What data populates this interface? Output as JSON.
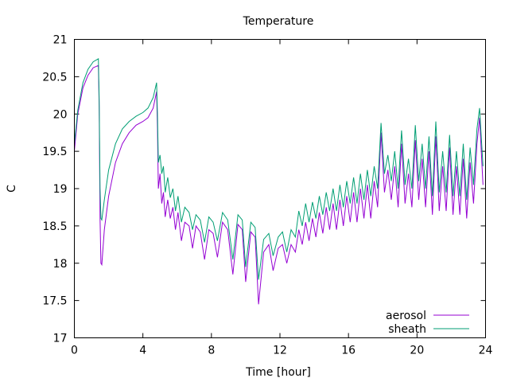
{
  "chart_data": {
    "type": "line",
    "title": "Temperature",
    "xlabel": "Time [hour]",
    "ylabel": "C",
    "xlim": [
      0,
      24
    ],
    "ylim": [
      17,
      21
    ],
    "xticks": [
      0,
      4,
      8,
      12,
      16,
      20,
      24
    ],
    "xtick_labels": [
      "0",
      "4",
      "8",
      "12",
      "16",
      "20",
      "24"
    ],
    "yticks": [
      17,
      17.5,
      18,
      18.5,
      19,
      19.5,
      20,
      20.5,
      21
    ],
    "ytick_labels": [
      "17",
      "17.5",
      "18",
      "18.5",
      "19",
      "19.5",
      "20",
      "20.5",
      "21"
    ],
    "grid": false,
    "legend_position": "bottom-right",
    "series": [
      {
        "name": "aerosol",
        "color": "#9400d3",
        "points": [
          [
            0,
            19.5
          ],
          [
            0.2,
            20.0
          ],
          [
            0.5,
            20.35
          ],
          [
            0.8,
            20.52
          ],
          [
            1.1,
            20.62
          ],
          [
            1.4,
            20.65
          ],
          [
            1.45,
            20.1
          ],
          [
            1.5,
            18.6
          ],
          [
            1.55,
            18.0
          ],
          [
            1.6,
            17.98
          ],
          [
            1.75,
            18.45
          ],
          [
            2.0,
            18.9
          ],
          [
            2.4,
            19.35
          ],
          [
            2.8,
            19.6
          ],
          [
            3.2,
            19.75
          ],
          [
            3.6,
            19.85
          ],
          [
            4.0,
            19.9
          ],
          [
            4.3,
            19.95
          ],
          [
            4.6,
            20.08
          ],
          [
            4.8,
            20.3
          ],
          [
            4.85,
            19.8
          ],
          [
            4.9,
            19.0
          ],
          [
            5.0,
            19.2
          ],
          [
            5.1,
            18.8
          ],
          [
            5.2,
            18.95
          ],
          [
            5.3,
            18.62
          ],
          [
            5.45,
            18.85
          ],
          [
            5.6,
            18.6
          ],
          [
            5.75,
            18.75
          ],
          [
            5.9,
            18.45
          ],
          [
            6.05,
            18.68
          ],
          [
            6.25,
            18.3
          ],
          [
            6.45,
            18.55
          ],
          [
            6.7,
            18.5
          ],
          [
            6.9,
            18.2
          ],
          [
            7.1,
            18.5
          ],
          [
            7.35,
            18.42
          ],
          [
            7.6,
            18.05
          ],
          [
            7.85,
            18.45
          ],
          [
            8.1,
            18.4
          ],
          [
            8.35,
            18.08
          ],
          [
            8.65,
            18.55
          ],
          [
            8.95,
            18.45
          ],
          [
            9.25,
            17.85
          ],
          [
            9.55,
            18.52
          ],
          [
            9.8,
            18.45
          ],
          [
            10.0,
            17.75
          ],
          [
            10.3,
            18.42
          ],
          [
            10.55,
            18.35
          ],
          [
            10.75,
            17.45
          ],
          [
            11.05,
            18.15
          ],
          [
            11.35,
            18.25
          ],
          [
            11.6,
            17.9
          ],
          [
            11.9,
            18.2
          ],
          [
            12.15,
            18.25
          ],
          [
            12.4,
            18.0
          ],
          [
            12.65,
            18.25
          ],
          [
            12.9,
            18.15
          ],
          [
            13.1,
            18.45
          ],
          [
            13.3,
            18.25
          ],
          [
            13.5,
            18.55
          ],
          [
            13.7,
            18.3
          ],
          [
            13.9,
            18.6
          ],
          [
            14.1,
            18.35
          ],
          [
            14.3,
            18.68
          ],
          [
            14.5,
            18.4
          ],
          [
            14.7,
            18.75
          ],
          [
            14.9,
            18.45
          ],
          [
            15.1,
            18.8
          ],
          [
            15.3,
            18.45
          ],
          [
            15.5,
            18.85
          ],
          [
            15.7,
            18.5
          ],
          [
            15.9,
            18.9
          ],
          [
            16.1,
            18.55
          ],
          [
            16.3,
            18.95
          ],
          [
            16.5,
            18.55
          ],
          [
            16.7,
            19.0
          ],
          [
            16.9,
            18.6
          ],
          [
            17.1,
            19.05
          ],
          [
            17.3,
            18.6
          ],
          [
            17.5,
            19.1
          ],
          [
            17.7,
            18.75
          ],
          [
            17.9,
            19.75
          ],
          [
            18.1,
            18.95
          ],
          [
            18.3,
            19.25
          ],
          [
            18.5,
            18.85
          ],
          [
            18.7,
            19.3
          ],
          [
            18.9,
            18.75
          ],
          [
            19.1,
            19.6
          ],
          [
            19.3,
            18.8
          ],
          [
            19.5,
            19.2
          ],
          [
            19.7,
            18.75
          ],
          [
            19.9,
            19.65
          ],
          [
            20.1,
            18.85
          ],
          [
            20.3,
            19.4
          ],
          [
            20.5,
            18.75
          ],
          [
            20.7,
            19.5
          ],
          [
            20.9,
            18.65
          ],
          [
            21.1,
            19.7
          ],
          [
            21.3,
            18.7
          ],
          [
            21.5,
            19.3
          ],
          [
            21.7,
            18.7
          ],
          [
            21.9,
            19.55
          ],
          [
            22.1,
            18.65
          ],
          [
            22.3,
            19.3
          ],
          [
            22.5,
            18.65
          ],
          [
            22.7,
            19.4
          ],
          [
            22.9,
            18.6
          ],
          [
            23.1,
            19.35
          ],
          [
            23.3,
            18.8
          ],
          [
            23.5,
            19.6
          ],
          [
            23.65,
            19.95
          ],
          [
            23.85,
            19.05
          ]
        ]
      },
      {
        "name": "sheath",
        "color": "#009e73",
        "points": [
          [
            0,
            19.6
          ],
          [
            0.2,
            20.05
          ],
          [
            0.5,
            20.42
          ],
          [
            0.8,
            20.6
          ],
          [
            1.1,
            20.7
          ],
          [
            1.4,
            20.74
          ],
          [
            1.45,
            20.2
          ],
          [
            1.5,
            19.0
          ],
          [
            1.55,
            18.6
          ],
          [
            1.6,
            18.58
          ],
          [
            1.75,
            18.85
          ],
          [
            2.0,
            19.25
          ],
          [
            2.4,
            19.6
          ],
          [
            2.8,
            19.8
          ],
          [
            3.2,
            19.9
          ],
          [
            3.6,
            19.97
          ],
          [
            4.0,
            20.02
          ],
          [
            4.3,
            20.08
          ],
          [
            4.6,
            20.22
          ],
          [
            4.8,
            20.42
          ],
          [
            4.85,
            20.0
          ],
          [
            4.9,
            19.35
          ],
          [
            5.0,
            19.45
          ],
          [
            5.1,
            19.2
          ],
          [
            5.2,
            19.3
          ],
          [
            5.3,
            18.95
          ],
          [
            5.45,
            19.15
          ],
          [
            5.6,
            18.88
          ],
          [
            5.75,
            19.0
          ],
          [
            5.9,
            18.7
          ],
          [
            6.05,
            18.9
          ],
          [
            6.25,
            18.55
          ],
          [
            6.45,
            18.75
          ],
          [
            6.7,
            18.68
          ],
          [
            6.9,
            18.45
          ],
          [
            7.1,
            18.65
          ],
          [
            7.35,
            18.58
          ],
          [
            7.6,
            18.28
          ],
          [
            7.85,
            18.62
          ],
          [
            8.1,
            18.55
          ],
          [
            8.35,
            18.3
          ],
          [
            8.65,
            18.68
          ],
          [
            8.95,
            18.58
          ],
          [
            9.25,
            18.05
          ],
          [
            9.55,
            18.65
          ],
          [
            9.8,
            18.58
          ],
          [
            10.0,
            17.95
          ],
          [
            10.3,
            18.55
          ],
          [
            10.55,
            18.48
          ],
          [
            10.75,
            17.78
          ],
          [
            11.05,
            18.32
          ],
          [
            11.35,
            18.4
          ],
          [
            11.6,
            18.1
          ],
          [
            11.9,
            18.35
          ],
          [
            12.15,
            18.42
          ],
          [
            12.4,
            18.15
          ],
          [
            12.65,
            18.45
          ],
          [
            12.9,
            18.35
          ],
          [
            13.1,
            18.7
          ],
          [
            13.3,
            18.5
          ],
          [
            13.5,
            18.8
          ],
          [
            13.7,
            18.55
          ],
          [
            13.9,
            18.82
          ],
          [
            14.1,
            18.6
          ],
          [
            14.3,
            18.9
          ],
          [
            14.5,
            18.65
          ],
          [
            14.7,
            18.95
          ],
          [
            14.9,
            18.7
          ],
          [
            15.1,
            19.0
          ],
          [
            15.3,
            18.7
          ],
          [
            15.5,
            19.05
          ],
          [
            15.7,
            18.75
          ],
          [
            15.9,
            19.1
          ],
          [
            16.1,
            18.8
          ],
          [
            16.3,
            19.15
          ],
          [
            16.5,
            18.8
          ],
          [
            16.7,
            19.2
          ],
          [
            16.9,
            18.85
          ],
          [
            17.1,
            19.25
          ],
          [
            17.3,
            18.9
          ],
          [
            17.5,
            19.3
          ],
          [
            17.7,
            19.0
          ],
          [
            17.9,
            19.88
          ],
          [
            18.1,
            19.2
          ],
          [
            18.3,
            19.45
          ],
          [
            18.5,
            19.1
          ],
          [
            18.7,
            19.5
          ],
          [
            18.9,
            19.0
          ],
          [
            19.1,
            19.78
          ],
          [
            19.3,
            19.05
          ],
          [
            19.5,
            19.4
          ],
          [
            19.7,
            19.0
          ],
          [
            19.9,
            19.85
          ],
          [
            20.1,
            19.1
          ],
          [
            20.3,
            19.6
          ],
          [
            20.5,
            19.0
          ],
          [
            20.7,
            19.7
          ],
          [
            20.9,
            18.9
          ],
          [
            21.1,
            19.9
          ],
          [
            21.3,
            18.95
          ],
          [
            21.5,
            19.5
          ],
          [
            21.7,
            18.95
          ],
          [
            21.9,
            19.72
          ],
          [
            22.1,
            18.9
          ],
          [
            22.3,
            19.5
          ],
          [
            22.5,
            18.9
          ],
          [
            22.7,
            19.6
          ],
          [
            22.9,
            18.85
          ],
          [
            23.1,
            19.55
          ],
          [
            23.3,
            19.05
          ],
          [
            23.5,
            19.8
          ],
          [
            23.65,
            20.08
          ],
          [
            23.85,
            19.3
          ]
        ]
      }
    ]
  }
}
